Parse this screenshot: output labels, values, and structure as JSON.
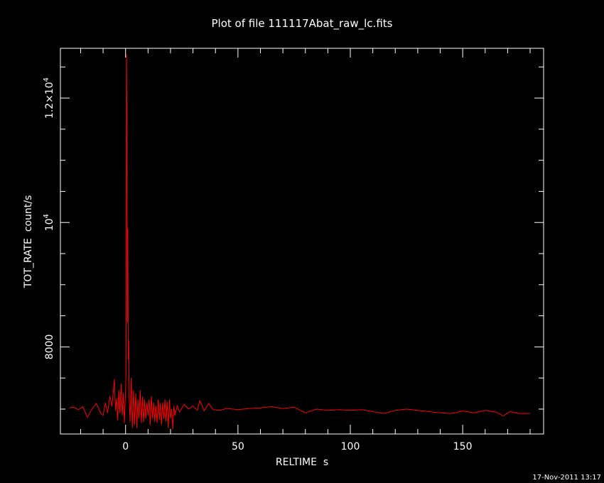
{
  "chart_data": {
    "type": "line",
    "title": "Plot of file 111117Abat_raw_lc.fits",
    "xlabel": "RELTIME  s",
    "ylabel": "TOT_RATE  count/s",
    "xlim": [
      -29,
      186
    ],
    "ylim": [
      6600,
      12800
    ],
    "x_ticks": [
      {
        "value": 0,
        "label": "0"
      },
      {
        "value": 50,
        "label": "50"
      },
      {
        "value": 100,
        "label": "100"
      },
      {
        "value": 150,
        "label": "150"
      }
    ],
    "y_ticks": [
      {
        "value": 8000,
        "label": "8000"
      },
      {
        "value": 10000,
        "label": "10",
        "sup": "4"
      },
      {
        "value": 12000,
        "label": "1.2×10",
        "sup": "4"
      }
    ],
    "series": [
      {
        "color": "#ff0000",
        "points": [
          [
            -25,
            7020
          ],
          [
            -23,
            7030
          ],
          [
            -21,
            6990
          ],
          [
            -19,
            7040
          ],
          [
            -17,
            6870
          ],
          [
            -15,
            7000
          ],
          [
            -13,
            7090
          ],
          [
            -11,
            6930
          ],
          [
            -10,
            6900
          ],
          [
            -9,
            7100
          ],
          [
            -8,
            6940
          ],
          [
            -7,
            7200
          ],
          [
            -6,
            7050
          ],
          [
            -5,
            7480
          ],
          [
            -4.5,
            6980
          ],
          [
            -4,
            7170
          ],
          [
            -3.5,
            6820
          ],
          [
            -3,
            7300
          ],
          [
            -2.5,
            6940
          ],
          [
            -2,
            7410
          ],
          [
            -1.5,
            6900
          ],
          [
            -1,
            7260
          ],
          [
            -0.5,
            6780
          ],
          [
            0,
            7300
          ],
          [
            0.2,
            7600
          ],
          [
            0.4,
            12700
          ],
          [
            0.6,
            11800
          ],
          [
            0.8,
            8400
          ],
          [
            1.0,
            9900
          ],
          [
            1.2,
            7800
          ],
          [
            1.4,
            8100
          ],
          [
            1.6,
            7200
          ],
          [
            2,
            6800
          ],
          [
            2.5,
            7500
          ],
          [
            3,
            6700
          ],
          [
            3.5,
            7300
          ],
          [
            4,
            6750
          ],
          [
            4.5,
            7250
          ],
          [
            5,
            6700
          ],
          [
            5.5,
            7150
          ],
          [
            6,
            6850
          ],
          [
            6.5,
            7300
          ],
          [
            7,
            6780
          ],
          [
            7.5,
            7200
          ],
          [
            8,
            6800
          ],
          [
            8.5,
            7150
          ],
          [
            9,
            6850
          ],
          [
            9.5,
            7100
          ],
          [
            10,
            6900
          ],
          [
            10.5,
            7150
          ],
          [
            11,
            6750
          ],
          [
            11.5,
            7200
          ],
          [
            12,
            6850
          ],
          [
            12.5,
            7100
          ],
          [
            13,
            6800
          ],
          [
            13.5,
            7050
          ],
          [
            14,
            6780
          ],
          [
            14.5,
            7150
          ],
          [
            15,
            6830
          ],
          [
            15.5,
            7100
          ],
          [
            16,
            6750
          ],
          [
            16.5,
            7100
          ],
          [
            17,
            6850
          ],
          [
            17.5,
            7150
          ],
          [
            18,
            6800
          ],
          [
            18.5,
            7120
          ],
          [
            19,
            6700
          ],
          [
            19.5,
            7150
          ],
          [
            20,
            6850
          ],
          [
            20.5,
            7000
          ],
          [
            21,
            6680
          ],
          [
            21.5,
            7050
          ],
          [
            22,
            6900
          ],
          [
            23,
            7060
          ],
          [
            24,
            6950
          ],
          [
            26,
            7080
          ],
          [
            28,
            7000
          ],
          [
            30,
            7050
          ],
          [
            32,
            6980
          ],
          [
            33,
            7140
          ],
          [
            35,
            6970
          ],
          [
            37,
            7090
          ],
          [
            39,
            6990
          ],
          [
            42,
            6980
          ],
          [
            45,
            7010
          ],
          [
            50,
            6990
          ],
          [
            55,
            7010
          ],
          [
            60,
            7020
          ],
          [
            65,
            7040
          ],
          [
            70,
            7010
          ],
          [
            75,
            7030
          ],
          [
            80,
            6940
          ],
          [
            85,
            7000
          ],
          [
            90,
            6980
          ],
          [
            95,
            6990
          ],
          [
            100,
            6980
          ],
          [
            105,
            6990
          ],
          [
            110,
            6960
          ],
          [
            115,
            6930
          ],
          [
            120,
            6980
          ],
          [
            125,
            7000
          ],
          [
            130,
            6980
          ],
          [
            135,
            6960
          ],
          [
            140,
            6940
          ],
          [
            145,
            6930
          ],
          [
            150,
            6970
          ],
          [
            155,
            6940
          ],
          [
            160,
            6980
          ],
          [
            165,
            6950
          ],
          [
            168,
            6890
          ],
          [
            171,
            6960
          ],
          [
            175,
            6930
          ],
          [
            180,
            6930
          ]
        ]
      }
    ]
  },
  "footer": {
    "timestamp": "17-Nov-2011 13:17"
  }
}
